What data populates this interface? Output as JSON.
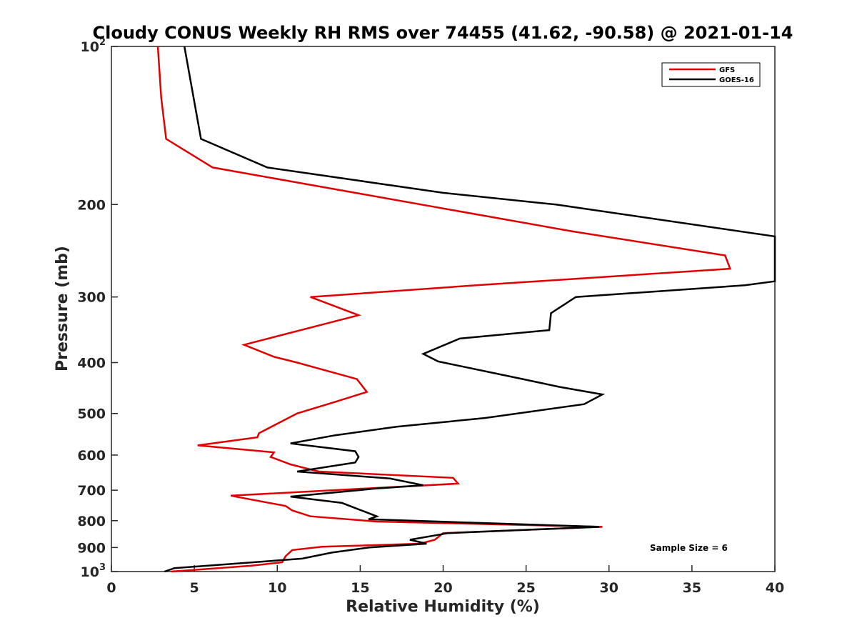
{
  "chart_data": {
    "type": "line",
    "title": "Cloudy CONUS Weekly RH RMS over 74455 (41.62, -90.58) @ 2021-01-14",
    "xlabel": "Relative Humidity (%)",
    "ylabel": "Pressure (mb)",
    "xlim": [
      0,
      40
    ],
    "ylim": [
      100,
      1000
    ],
    "y_scale": "log",
    "y_reversed": true,
    "grid": false,
    "legend_position": "top-right",
    "annotation": "Sample Size = 6",
    "x_ticks": [
      "0",
      "5",
      "10",
      "15",
      "20",
      "25",
      "30",
      "35",
      "40"
    ],
    "y_ticks": [
      {
        "value": 100,
        "base": "10",
        "exp": "2"
      },
      {
        "value": 200,
        "base": "200",
        "exp": ""
      },
      {
        "value": 300,
        "base": "300",
        "exp": ""
      },
      {
        "value": 400,
        "base": "400",
        "exp": ""
      },
      {
        "value": 500,
        "base": "500",
        "exp": ""
      },
      {
        "value": 600,
        "base": "600",
        "exp": ""
      },
      {
        "value": 700,
        "base": "700",
        "exp": ""
      },
      {
        "value": 800,
        "base": "800",
        "exp": ""
      },
      {
        "value": 900,
        "base": "900",
        "exp": ""
      },
      {
        "value": 1000,
        "base": "10",
        "exp": "3"
      }
    ],
    "series": [
      {
        "name": "GFS",
        "color": "#e00000",
        "points": [
          [
            2.8,
            100
          ],
          [
            3.0,
            125
          ],
          [
            3.3,
            150
          ],
          [
            6.1,
            170
          ],
          [
            27.8,
            225
          ],
          [
            37.0,
            250
          ],
          [
            37.3,
            265
          ],
          [
            22.0,
            285
          ],
          [
            12.0,
            300
          ],
          [
            14.9,
            325
          ],
          [
            8.0,
            370
          ],
          [
            9.8,
            390
          ],
          [
            11.2,
            400
          ],
          [
            14.8,
            430
          ],
          [
            15.4,
            455
          ],
          [
            13.5,
            475
          ],
          [
            11.2,
            500
          ],
          [
            8.9,
            545
          ],
          [
            8.8,
            555
          ],
          [
            5.2,
            575
          ],
          [
            9.8,
            593
          ],
          [
            9.6,
            605
          ],
          [
            10.8,
            625
          ],
          [
            12.5,
            645
          ],
          [
            20.6,
            663
          ],
          [
            20.9,
            680
          ],
          [
            7.2,
            717
          ],
          [
            10.5,
            750
          ],
          [
            10.9,
            765
          ],
          [
            12.0,
            785
          ],
          [
            16.0,
            803
          ],
          [
            29.6,
            822
          ],
          [
            20.0,
            845
          ],
          [
            19.5,
            870
          ],
          [
            18.6,
            885
          ],
          [
            12.7,
            897
          ],
          [
            10.9,
            910
          ],
          [
            10.5,
            935
          ],
          [
            10.3,
            960
          ],
          [
            8.4,
            975
          ],
          [
            3.6,
            1000
          ]
        ]
      },
      {
        "name": "GOES-16",
        "color": "#000000",
        "points": [
          [
            4.4,
            100
          ],
          [
            5.4,
            150
          ],
          [
            9.4,
            170
          ],
          [
            20.0,
            190
          ],
          [
            26.8,
            200
          ],
          [
            40.0,
            230
          ],
          [
            40.0,
            280
          ],
          [
            38.2,
            285
          ],
          [
            28.0,
            300
          ],
          [
            26.5,
            322
          ],
          [
            26.4,
            347
          ],
          [
            21.0,
            360
          ],
          [
            18.8,
            385
          ],
          [
            19.7,
            398
          ],
          [
            24.8,
            430
          ],
          [
            27.0,
            445
          ],
          [
            29.6,
            460
          ],
          [
            28.5,
            480
          ],
          [
            22.5,
            510
          ],
          [
            17.2,
            530
          ],
          [
            13.5,
            550
          ],
          [
            10.8,
            570
          ],
          [
            14.7,
            590
          ],
          [
            14.9,
            605
          ],
          [
            14.7,
            620
          ],
          [
            11.2,
            645
          ],
          [
            16.8,
            665
          ],
          [
            18.8,
            685
          ],
          [
            15.9,
            695
          ],
          [
            10.8,
            720
          ],
          [
            13.9,
            740
          ],
          [
            16.0,
            785
          ],
          [
            15.5,
            795
          ],
          [
            29.4,
            822
          ],
          [
            20.3,
            845
          ],
          [
            18.0,
            870
          ],
          [
            19.0,
            885
          ],
          [
            15.5,
            900
          ],
          [
            13.3,
            920
          ],
          [
            11.5,
            945
          ],
          [
            3.8,
            985
          ],
          [
            3.2,
            1000
          ]
        ]
      }
    ]
  }
}
